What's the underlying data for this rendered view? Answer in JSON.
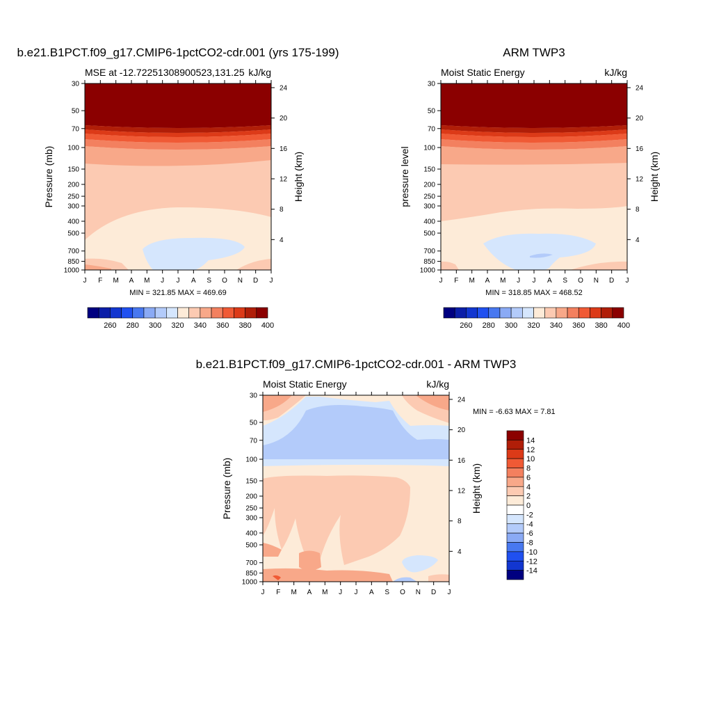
{
  "chart_data": [
    {
      "type": "heatmap",
      "title": "b.e21.B1PCT.f09_g17.CMIP6-1pctCO2-cdr.001 (yrs 175-199)",
      "subtitle_left": "MSE at -12.72251308900523,131.25",
      "subtitle_right": "kJ/kg",
      "ylabel_left": "Pressure (mb)",
      "ylabel_right": "Height (km)",
      "x_ticks": [
        "J",
        "F",
        "M",
        "A",
        "M",
        "J",
        "J",
        "A",
        "S",
        "O",
        "N",
        "D",
        "J"
      ],
      "y_ticks": [
        "30",
        "50",
        "70",
        "100",
        "150",
        "200",
        "250",
        "300",
        "400",
        "500",
        "700",
        "850",
        "1000"
      ],
      "height_ticks": [
        "24",
        "20",
        "16",
        "12",
        "8",
        "4"
      ],
      "stats": "MIN = 321.85 MAX = 469.69",
      "levels": [
        "260",
        "280",
        "300",
        "320",
        "340",
        "360",
        "380",
        "400"
      ],
      "palette": [
        "#000080",
        "#0b1ea8",
        "#1236d0",
        "#2050f0",
        "#4878f0",
        "#8aaaf5",
        "#b3cbfa",
        "#d5e6fd",
        "#fdebd8",
        "#fccab2",
        "#f8a889",
        "#f3805f",
        "#f05a35",
        "#dc3a18",
        "#b01e08",
        "#8b0000"
      ]
    },
    {
      "type": "heatmap",
      "title": "ARM TWP3",
      "subtitle_left": "Moist Static Energy",
      "subtitle_right": "kJ/kg",
      "ylabel_left": "pressure level",
      "ylabel_right": "Height (km)",
      "x_ticks": [
        "J",
        "F",
        "M",
        "A",
        "M",
        "J",
        "J",
        "A",
        "S",
        "O",
        "N",
        "D",
        "J"
      ],
      "y_ticks": [
        "30",
        "50",
        "70",
        "100",
        "150",
        "200",
        "250",
        "300",
        "400",
        "500",
        "700",
        "850",
        "1000"
      ],
      "height_ticks": [
        "24",
        "20",
        "16",
        "12",
        "8",
        "4"
      ],
      "stats": "MIN = 318.85 MAX = 468.52",
      "levels": [
        "260",
        "280",
        "300",
        "320",
        "340",
        "360",
        "380",
        "400"
      ]
    },
    {
      "type": "heatmap",
      "title": "b.e21.B1PCT.f09_g17.CMIP6-1pctCO2-cdr.001 - ARM TWP3",
      "subtitle_left": "Moist Static Energy",
      "subtitle_right": "kJ/kg",
      "ylabel_left": "Pressure (mb)",
      "ylabel_right": "Height (km)",
      "x_ticks": [
        "J",
        "F",
        "M",
        "A",
        "M",
        "J",
        "J",
        "A",
        "S",
        "O",
        "N",
        "D",
        "J"
      ],
      "y_ticks": [
        "30",
        "50",
        "70",
        "100",
        "150",
        "200",
        "250",
        "300",
        "400",
        "500",
        "700",
        "850",
        "1000"
      ],
      "height_ticks": [
        "24",
        "20",
        "16",
        "12",
        "8",
        "4"
      ],
      "stats": "MIN =  -6.63 MAX =   7.81",
      "levels": [
        "14",
        "12",
        "10",
        "8",
        "6",
        "4",
        "2",
        "0",
        "-2",
        "-4",
        "-6",
        "-8",
        "-10",
        "-12",
        "-14"
      ],
      "palette": [
        "#8b0000",
        "#b01e08",
        "#dc3a18",
        "#f05a35",
        "#f3805f",
        "#f8a889",
        "#fccab2",
        "#fdebd8",
        "#ffffff",
        "#d5e6fd",
        "#b3cbfa",
        "#8aaaf5",
        "#4878f0",
        "#2050f0",
        "#1236d0",
        "#000080"
      ]
    }
  ]
}
